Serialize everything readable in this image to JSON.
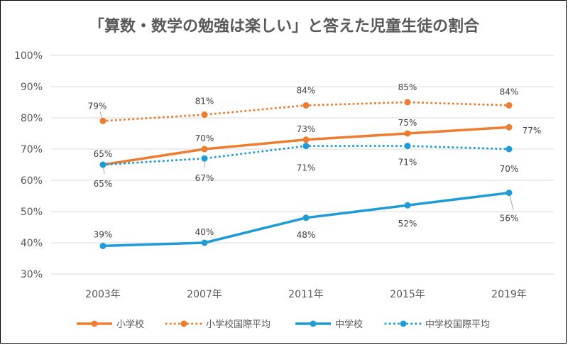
{
  "chart_data": {
    "type": "line",
    "title": "「算数・数学の勉強は楽しい」と答えた児童生徒の割合",
    "categories": [
      "2003年",
      "2007年",
      "2011年",
      "2015年",
      "2019年"
    ],
    "ylim": [
      30,
      100
    ],
    "yticks": [
      "30%",
      "40%",
      "50%",
      "60%",
      "70%",
      "80%",
      "90%",
      "100%"
    ],
    "ytick_values": [
      30,
      40,
      50,
      60,
      70,
      80,
      90,
      100
    ],
    "grid": true,
    "legend_position": "bottom",
    "series": [
      {
        "name": "小学校",
        "values": [
          65,
          70,
          73,
          75,
          77
        ],
        "labels": [
          "65%",
          "70%",
          "73%",
          "75%",
          "77%"
        ],
        "color": "#ED7D31",
        "style": "solid"
      },
      {
        "name": "小学校国際平均",
        "values": [
          79,
          81,
          84,
          85,
          84
        ],
        "labels": [
          "79%",
          "81%",
          "84%",
          "85%",
          "84%"
        ],
        "color": "#ED7D31",
        "style": "dotted"
      },
      {
        "name": "中学校",
        "values": [
          39,
          40,
          48,
          52,
          56
        ],
        "labels": [
          "39%",
          "40%",
          "48%",
          "52%",
          "56%"
        ],
        "color": "#1F9BD7",
        "style": "solid"
      },
      {
        "name": "中学校国際平均",
        "values": [
          65,
          67,
          71,
          71,
          70
        ],
        "labels": [
          "65%",
          "67%",
          "71%",
          "71%",
          "70%"
        ],
        "color": "#1F9BD7",
        "style": "dotted"
      }
    ]
  }
}
